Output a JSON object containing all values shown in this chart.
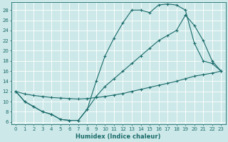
{
  "xlabel": "Humidex (Indice chaleur)",
  "xlim": [
    -0.5,
    23.5
  ],
  "ylim": [
    5.5,
    29.5
  ],
  "xticks": [
    0,
    1,
    2,
    3,
    4,
    5,
    6,
    7,
    8,
    9,
    10,
    11,
    12,
    13,
    14,
    15,
    16,
    17,
    18,
    19,
    20,
    21,
    22,
    23
  ],
  "yticks": [
    6,
    8,
    10,
    12,
    14,
    16,
    18,
    20,
    22,
    24,
    26,
    28
  ],
  "bg_color": "#cde8e8",
  "line_color": "#1a6b6b",
  "grid_color": "#b0d4d4",
  "line1_x": [
    0,
    1,
    2,
    3,
    4,
    5,
    6,
    7,
    8,
    9,
    10,
    11,
    12,
    13,
    14,
    15,
    16,
    17,
    18,
    19,
    20,
    21,
    22,
    23
  ],
  "line1_y": [
    12,
    10,
    9,
    8,
    7.5,
    6.5,
    6.3,
    6.3,
    8.5,
    14,
    19,
    22.5,
    25.5,
    28,
    28,
    27.5,
    29,
    29.2,
    29,
    28,
    21.5,
    18,
    17.5,
    16
  ],
  "line2_x": [
    0,
    1,
    2,
    3,
    4,
    5,
    6,
    7,
    8,
    9,
    10,
    11,
    12,
    13,
    14,
    15,
    16,
    17,
    18,
    19,
    20,
    21,
    22,
    23
  ],
  "line2_y": [
    12,
    10,
    9,
    8,
    7.5,
    6.5,
    6.3,
    6.3,
    8.5,
    11,
    13,
    14.5,
    16,
    17.5,
    19,
    20.5,
    22,
    23,
    24,
    27,
    25,
    22,
    18,
    16
  ],
  "line3_x": [
    0,
    1,
    2,
    3,
    4,
    5,
    6,
    7,
    8,
    9,
    10,
    11,
    12,
    13,
    14,
    15,
    16,
    17,
    18,
    19,
    20,
    21,
    22,
    23
  ],
  "line3_y": [
    12,
    11.5,
    11.2,
    11,
    10.8,
    10.7,
    10.6,
    10.5,
    10.6,
    10.8,
    11,
    11.3,
    11.6,
    12,
    12.4,
    12.8,
    13.2,
    13.6,
    14,
    14.5,
    15,
    15.3,
    15.6,
    16
  ]
}
